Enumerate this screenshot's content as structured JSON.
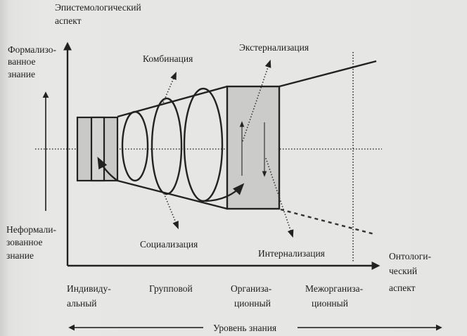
{
  "diagram": {
    "vertical_axis": {
      "line1": "Эпистемологический",
      "line2": "аспект"
    },
    "formal_knowledge": {
      "line1": "Формализо-",
      "line2": "ванное",
      "line3": "знание"
    },
    "informal_knowledge": {
      "line1": "Неформали-",
      "line2": "зованное",
      "line3": "знание"
    },
    "horizontal_axis": {
      "line1": "Онтологи-",
      "line2": "ческий",
      "line3": "аспект"
    },
    "processes": {
      "combination": "Комбинация",
      "externalization": "Экстернализация",
      "socialization": "Социализация",
      "internalization": "Интернализация"
    },
    "levels": [
      {
        "line1": "Индивиду-",
        "line2": "альный"
      },
      {
        "line1": "Групповой",
        "line2": ""
      },
      {
        "line1": "Организа-",
        "line2": "ционный"
      },
      {
        "line1": "Межорганиза-",
        "line2": "ционный"
      }
    ],
    "knowledge_level": "Уровень знания"
  }
}
